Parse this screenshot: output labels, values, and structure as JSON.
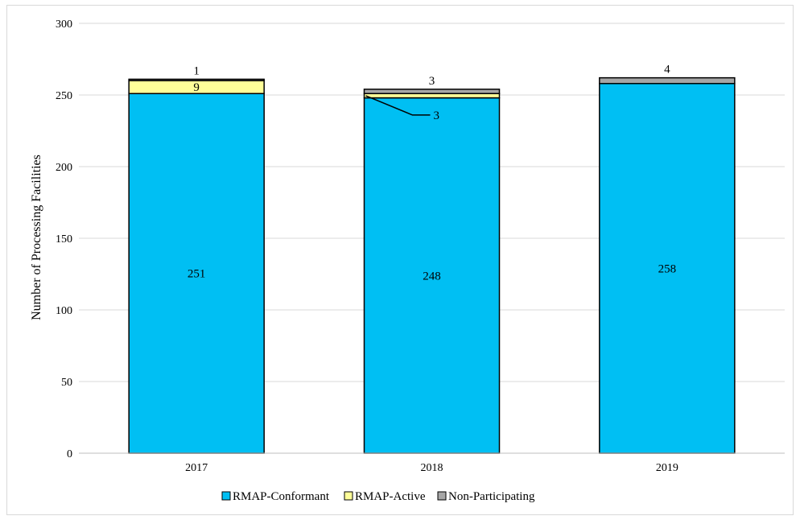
{
  "chart_data": {
    "type": "bar",
    "stacked": true,
    "title": "",
    "xlabel": "",
    "ylabel": "Number of Processing Facilities",
    "ylim": [
      0,
      300
    ],
    "yticks": [
      0,
      50,
      100,
      150,
      200,
      250,
      300
    ],
    "grid": true,
    "legend": "bottom",
    "categories": [
      "2017",
      "2018",
      "2019"
    ],
    "series": [
      {
        "name": "RMAP-Conformant",
        "color": "#00bff3",
        "values": [
          251,
          248,
          258
        ]
      },
      {
        "name": "RMAP-Active",
        "color": "#ffff99",
        "values": [
          9,
          3,
          0
        ]
      },
      {
        "name": "Non-Participating",
        "color": "#a6a6a6",
        "values": [
          1,
          3,
          4
        ]
      }
    ],
    "data_labels": {
      "2017": [
        "251",
        "9",
        "1"
      ],
      "2018": [
        "248",
        "3",
        "3"
      ],
      "2019": [
        "258",
        "",
        "4"
      ]
    }
  }
}
